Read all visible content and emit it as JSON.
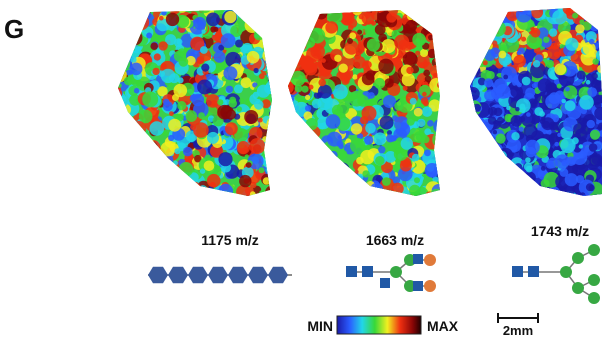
{
  "panel_letter": "G",
  "images": [
    {
      "label": "1175 m/z"
    },
    {
      "label": "1663 m/z"
    },
    {
      "label": "1743 m/z"
    }
  ],
  "colorbar": {
    "min_label": "MIN",
    "max_label": "MAX"
  },
  "scale_bar": {
    "label": "2mm"
  }
}
